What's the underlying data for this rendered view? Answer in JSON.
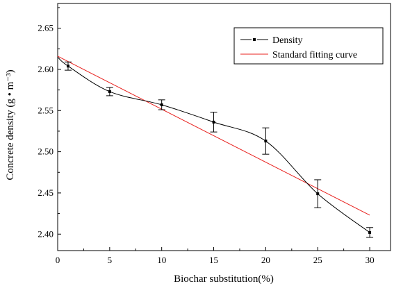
{
  "chart_data": {
    "type": "line",
    "title": "",
    "xlabel": "Biochar substitution(%)",
    "ylabel": "Concrete density (g • m⁻³)",
    "xlim": [
      0,
      32
    ],
    "ylim": [
      2.38,
      2.68
    ],
    "xticks": [
      0,
      5,
      10,
      15,
      20,
      25,
      30
    ],
    "yticks": [
      2.4,
      2.45,
      2.5,
      2.55,
      2.6,
      2.65
    ],
    "xtick_labels": [
      "0",
      "5",
      "10",
      "15",
      "20",
      "25",
      "30"
    ],
    "ytick_labels": [
      "2.40",
      "2.45",
      "2.50",
      "2.55",
      "2.60",
      "2.65"
    ],
    "legend_position": "top-right",
    "grid": false,
    "series": [
      {
        "name": "Density",
        "style": "black smooth line with square markers and error bars",
        "color": "#000000",
        "x": [
          1,
          5,
          10,
          15,
          20,
          25,
          30
        ],
        "y": [
          2.604,
          2.573,
          2.557,
          2.536,
          2.513,
          2.449,
          2.402
        ],
        "error": [
          0.005,
          0.005,
          0.006,
          0.012,
          0.016,
          0.017,
          0.006
        ],
        "curve_start": [
          0,
          2.615
        ]
      },
      {
        "name": "Standard fitting curve",
        "style": "red straight line",
        "color": "#e8201d",
        "x": [
          0,
          30
        ],
        "y": [
          2.616,
          2.423
        ]
      }
    ]
  }
}
